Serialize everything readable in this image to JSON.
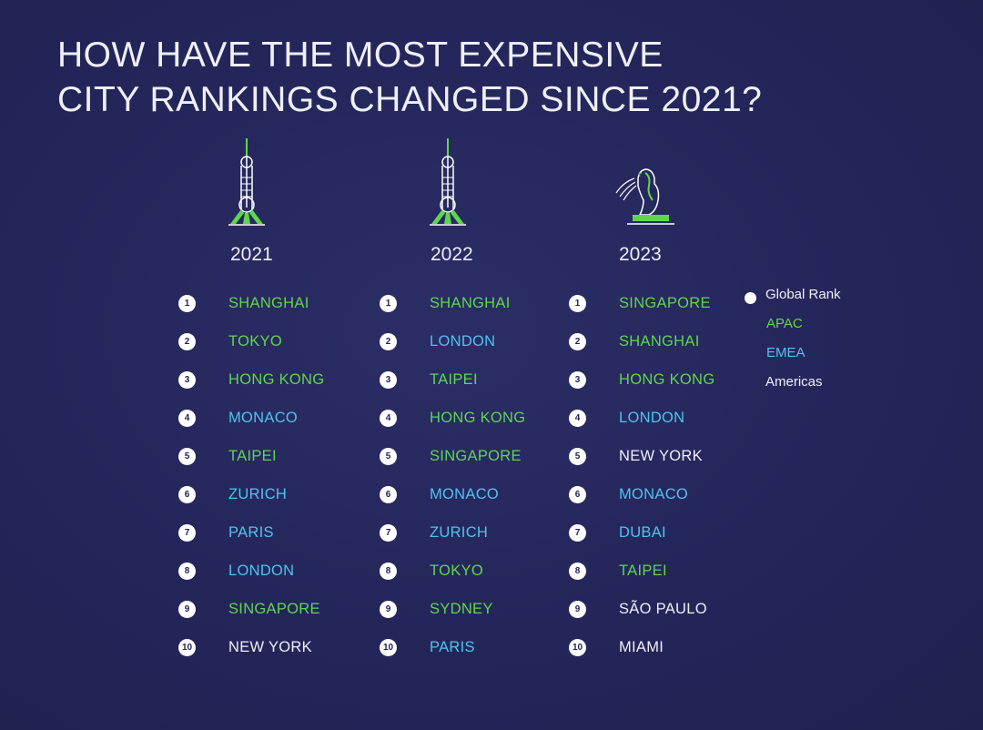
{
  "title": {
    "line1": "HOW HAVE THE MOST EXPENSIVE",
    "line2": "CITY RANKINGS CHANGED SINCE 2021?"
  },
  "colors": {
    "background": "#24265a",
    "APAC": "#5fd650",
    "EMEA": "#4fc3ef",
    "Americas": "#eef0fa",
    "badge": "#ffffff"
  },
  "columns": [
    {
      "year": "2021",
      "icon": "oriental-pearl-tower-icon",
      "rankings": [
        {
          "rank": "1",
          "city": "SHANGHAI",
          "region": "APAC"
        },
        {
          "rank": "2",
          "city": "TOKYO",
          "region": "APAC"
        },
        {
          "rank": "3",
          "city": "HONG KONG",
          "region": "APAC"
        },
        {
          "rank": "4",
          "city": "MONACO",
          "region": "EMEA"
        },
        {
          "rank": "5",
          "city": "TAIPEI",
          "region": "APAC"
        },
        {
          "rank": "6",
          "city": "ZURICH",
          "region": "EMEA"
        },
        {
          "rank": "7",
          "city": "PARIS",
          "region": "EMEA"
        },
        {
          "rank": "8",
          "city": "LONDON",
          "region": "EMEA"
        },
        {
          "rank": "9",
          "city": "SINGAPORE",
          "region": "APAC"
        },
        {
          "rank": "10",
          "city": "NEW YORK",
          "region": "Americas"
        }
      ]
    },
    {
      "year": "2022",
      "icon": "oriental-pearl-tower-icon",
      "rankings": [
        {
          "rank": "1",
          "city": "SHANGHAI",
          "region": "APAC"
        },
        {
          "rank": "2",
          "city": "LONDON",
          "region": "EMEA"
        },
        {
          "rank": "3",
          "city": "TAIPEI",
          "region": "APAC"
        },
        {
          "rank": "4",
          "city": "HONG KONG",
          "region": "APAC"
        },
        {
          "rank": "5",
          "city": "SINGAPORE",
          "region": "APAC"
        },
        {
          "rank": "6",
          "city": "MONACO",
          "region": "EMEA"
        },
        {
          "rank": "7",
          "city": "ZURICH",
          "region": "EMEA"
        },
        {
          "rank": "8",
          "city": "TOKYO",
          "region": "APAC"
        },
        {
          "rank": "9",
          "city": "SYDNEY",
          "region": "APAC"
        },
        {
          "rank": "10",
          "city": "PARIS",
          "region": "EMEA"
        }
      ]
    },
    {
      "year": "2023",
      "icon": "merlion-icon",
      "rankings": [
        {
          "rank": "1",
          "city": "SINGAPORE",
          "region": "APAC"
        },
        {
          "rank": "2",
          "city": "SHANGHAI",
          "region": "APAC"
        },
        {
          "rank": "3",
          "city": "HONG KONG",
          "region": "APAC"
        },
        {
          "rank": "4",
          "city": "LONDON",
          "region": "EMEA"
        },
        {
          "rank": "5",
          "city": "NEW YORK",
          "region": "Americas"
        },
        {
          "rank": "6",
          "city": "MONACO",
          "region": "EMEA"
        },
        {
          "rank": "7",
          "city": "DUBAI",
          "region": "EMEA"
        },
        {
          "rank": "8",
          "city": "TAIPEI",
          "region": "APAC"
        },
        {
          "rank": "9",
          "city": "SÃO PAULO",
          "region": "Americas"
        },
        {
          "rank": "10",
          "city": "MIAMI",
          "region": "Americas"
        }
      ]
    }
  ],
  "legend": {
    "global_rank": "Global Rank",
    "apac": "APAC",
    "emea": "EMEA",
    "americas": "Americas"
  }
}
